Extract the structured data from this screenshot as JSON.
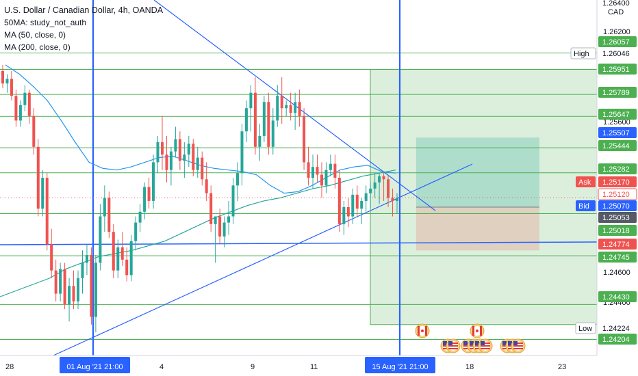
{
  "legend": {
    "title": "U.S. Dollar / Canadian Dollar, 4h, OANDA",
    "line2": "50MA: study_not_auth",
    "line3": "MA (50, close, 0)",
    "line4": "MA (200, close, 0)"
  },
  "price_axis": {
    "currency": "CAD",
    "top_price": "1.26400",
    "ticks": [
      "1.26200",
      "1.25600",
      "1.24600",
      "1.24400",
      "1.24200"
    ],
    "markers": [
      {
        "label": "",
        "value": "1.26057",
        "kind": "level"
      },
      {
        "label": "High",
        "value": "1.26046",
        "kind": "plain"
      },
      {
        "label": "",
        "value": "1.25951",
        "kind": "level"
      },
      {
        "label": "",
        "value": "1.25789",
        "kind": "level"
      },
      {
        "label": "",
        "value": "1.25647",
        "kind": "level"
      },
      {
        "label": "",
        "value": "1.25507",
        "kind": "blue"
      },
      {
        "label": "",
        "value": "1.25444",
        "kind": "level"
      },
      {
        "label": "",
        "value": "1.25282",
        "kind": "level"
      },
      {
        "label": "Ask",
        "value": "1.25170",
        "kind": "red"
      },
      {
        "label": "",
        "value": "1.25120",
        "kind": "red-outline"
      },
      {
        "label": "Bid",
        "value": "1.25070",
        "kind": "blue"
      },
      {
        "label": "",
        "value": "1.25053",
        "kind": "gray"
      },
      {
        "label": "",
        "value": "1.25018",
        "kind": "level"
      },
      {
        "label": "",
        "value": "1.24774",
        "kind": "red"
      },
      {
        "label": "",
        "value": "1.24745",
        "kind": "level"
      },
      {
        "label": "",
        "value": "1.24430",
        "kind": "level"
      },
      {
        "label": "Low",
        "value": "1.24224",
        "kind": "plain"
      },
      {
        "label": "",
        "value": "1.24204",
        "kind": "level"
      }
    ]
  },
  "time_axis": {
    "labels": [
      "28",
      "4",
      "9",
      "11",
      "18",
      "23"
    ],
    "highlighted": [
      "01 Aug '21  21:00",
      "15 Aug '21  21:00"
    ]
  },
  "colors": {
    "level_line": "#4caf50",
    "up_candle": "#26a69a",
    "down_candle": "#ef5350",
    "trend_line": "#2962ff",
    "ma50": "#2196f3",
    "ma200": "#26a69a"
  },
  "chart_data": {
    "type": "candlestick",
    "symbol": "USD/CAD",
    "timeframe": "4h",
    "ylim": [
      1.241,
      1.264
    ],
    "horizontal_levels": [
      1.26057,
      1.25951,
      1.25789,
      1.25647,
      1.25444,
      1.25282,
      1.25018,
      1.24745,
      1.2443,
      1.24204
    ],
    "last_price": 1.2512,
    "candles": [
      [
        1.2594,
        1.2598,
        1.2583,
        1.2586
      ],
      [
        1.2586,
        1.2592,
        1.258,
        1.2589
      ],
      [
        1.2589,
        1.2594,
        1.2575,
        1.2578
      ],
      [
        1.2578,
        1.2582,
        1.2558,
        1.2562
      ],
      [
        1.2562,
        1.2575,
        1.2558,
        1.2572
      ],
      [
        1.2572,
        1.2585,
        1.2568,
        1.258
      ],
      [
        1.258,
        1.2582,
        1.256,
        1.2565
      ],
      [
        1.2565,
        1.257,
        1.254,
        1.2545
      ],
      [
        1.2545,
        1.255,
        1.25,
        1.2505
      ],
      [
        1.2505,
        1.253,
        1.25,
        1.2525
      ],
      [
        1.2525,
        1.2528,
        1.2478,
        1.2482
      ],
      [
        1.2482,
        1.2492,
        1.246,
        1.2465
      ],
      [
        1.2465,
        1.2472,
        1.2445,
        1.245
      ],
      [
        1.245,
        1.247,
        1.2445,
        1.2466
      ],
      [
        1.2466,
        1.247,
        1.244,
        1.2443
      ],
      [
        1.2443,
        1.246,
        1.2432,
        1.2455
      ],
      [
        1.2455,
        1.2465,
        1.244,
        1.2445
      ],
      [
        1.2445,
        1.2465,
        1.244,
        1.246
      ],
      [
        1.246,
        1.2478,
        1.245,
        1.247
      ],
      [
        1.247,
        1.2482,
        1.2462,
        1.2475
      ],
      [
        1.2475,
        1.248,
        1.243,
        1.2435
      ],
      [
        1.2435,
        1.2475,
        1.2425,
        1.247
      ],
      [
        1.247,
        1.2508,
        1.2465,
        1.25
      ],
      [
        1.25,
        1.252,
        1.249,
        1.2512
      ],
      [
        1.2512,
        1.2516,
        1.2486,
        1.249
      ],
      [
        1.249,
        1.2495,
        1.246,
        1.2465
      ],
      [
        1.2465,
        1.2485,
        1.246,
        1.248
      ],
      [
        1.248,
        1.249,
        1.2468,
        1.2472
      ],
      [
        1.2472,
        1.248,
        1.2458,
        1.2462
      ],
      [
        1.2462,
        1.2488,
        1.2458,
        1.2484
      ],
      [
        1.2484,
        1.25,
        1.2478,
        1.2496
      ],
      [
        1.2496,
        1.2508,
        1.249,
        1.2503
      ],
      [
        1.2503,
        1.2522,
        1.2498,
        1.2519
      ],
      [
        1.2519,
        1.2525,
        1.2505,
        1.251
      ],
      [
        1.251,
        1.254,
        1.2505,
        1.2535
      ],
      [
        1.2535,
        1.2552,
        1.2528,
        1.2548
      ],
      [
        1.2548,
        1.2565,
        1.253,
        1.254
      ],
      [
        1.254,
        1.2552,
        1.2522,
        1.253
      ],
      [
        1.253,
        1.2545,
        1.252,
        1.2542
      ],
      [
        1.2542,
        1.2558,
        1.2538,
        1.255
      ],
      [
        1.255,
        1.2555,
        1.253,
        1.2536
      ],
      [
        1.2536,
        1.2548,
        1.2525,
        1.254
      ],
      [
        1.254,
        1.2552,
        1.2532,
        1.2547
      ],
      [
        1.2547,
        1.255,
        1.2526,
        1.253
      ],
      [
        1.253,
        1.2545,
        1.2525,
        1.2538
      ],
      [
        1.2538,
        1.2542,
        1.252,
        1.2524
      ],
      [
        1.2524,
        1.2535,
        1.251,
        1.2515
      ],
      [
        1.2515,
        1.252,
        1.249,
        1.2495
      ],
      [
        1.2495,
        1.25,
        1.247,
        1.25
      ],
      [
        1.25,
        1.2505,
        1.2482,
        1.2487
      ],
      [
        1.2487,
        1.25,
        1.248,
        1.2496
      ],
      [
        1.2496,
        1.251,
        1.2488,
        1.25
      ],
      [
        1.25,
        1.2525,
        1.2495,
        1.252
      ],
      [
        1.252,
        1.2535,
        1.251,
        1.2528
      ],
      [
        1.2528,
        1.256,
        1.252,
        1.2555
      ],
      [
        1.2555,
        1.2575,
        1.2548,
        1.257
      ],
      [
        1.257,
        1.2585,
        1.2555,
        1.258
      ],
      [
        1.258,
        1.259,
        1.254,
        1.2545
      ],
      [
        1.2545,
        1.256,
        1.2536,
        1.2552
      ],
      [
        1.2552,
        1.2578,
        1.2548,
        1.2574
      ],
      [
        1.2574,
        1.258,
        1.254,
        1.2545
      ],
      [
        1.2545,
        1.257,
        1.254,
        1.2562
      ],
      [
        1.2562,
        1.2585,
        1.2558,
        1.2578
      ],
      [
        1.2578,
        1.259,
        1.256,
        1.257
      ],
      [
        1.257,
        1.2575,
        1.2565,
        1.2572
      ],
      [
        1.2572,
        1.258,
        1.2562,
        1.2567
      ],
      [
        1.2567,
        1.258,
        1.2556,
        1.2574
      ],
      [
        1.2574,
        1.2582,
        1.2558,
        1.2565
      ],
      [
        1.2565,
        1.257,
        1.253,
        1.2535
      ],
      [
        1.2535,
        1.2545,
        1.252,
        1.2525
      ],
      [
        1.2525,
        1.254,
        1.2518,
        1.2532
      ],
      [
        1.2532,
        1.254,
        1.2522,
        1.2527
      ],
      [
        1.2527,
        1.2535,
        1.2512,
        1.252
      ],
      [
        1.252,
        1.2535,
        1.2515,
        1.253
      ],
      [
        1.253,
        1.254,
        1.2526,
        1.2534
      ],
      [
        1.2534,
        1.254,
        1.2518,
        1.2525
      ],
      [
        1.2525,
        1.253,
        1.249,
        1.2495
      ],
      [
        1.2495,
        1.251,
        1.2488,
        1.2506
      ],
      [
        1.2506,
        1.2512,
        1.2493,
        1.25
      ],
      [
        1.25,
        1.2518,
        1.2495,
        1.2514
      ],
      [
        1.2514,
        1.252,
        1.25,
        1.2505
      ],
      [
        1.2505,
        1.2512,
        1.2495,
        1.251
      ],
      [
        1.251,
        1.252,
        1.2503,
        1.2515
      ],
      [
        1.2515,
        1.2522,
        1.2505,
        1.2518
      ],
      [
        1.2518,
        1.2528,
        1.2512,
        1.2522
      ],
      [
        1.2522,
        1.2528,
        1.2508,
        1.2526
      ],
      [
        1.2526,
        1.2528,
        1.251,
        1.2524
      ],
      [
        1.2524,
        1.2526,
        1.2506,
        1.2512
      ],
      [
        1.2512,
        1.2518,
        1.25,
        1.251
      ],
      [
        1.251,
        1.2515,
        1.2502,
        1.2512
      ]
    ],
    "ma50": [
      1.2598,
      1.2592,
      1.2584,
      1.2575,
      1.2562,
      1.2548,
      1.2535,
      1.2531,
      1.253,
      1.2532,
      1.2535,
      1.2538,
      1.2539,
      1.2536,
      1.2533,
      1.2531,
      1.253,
      1.2529,
      1.2527,
      1.252,
      1.2515,
      1.2516,
      1.252,
      1.2525,
      1.253,
      1.2532,
      1.2533,
      1.2529,
      1.2528
    ],
    "ma200": [
      1.2448,
      1.2452,
      1.2456,
      1.246,
      1.2466,
      1.247,
      1.2474,
      1.2476,
      1.2478,
      1.2481,
      1.2484,
      1.2489,
      1.2494,
      1.2499,
      1.2503,
      1.2507,
      1.251,
      1.2512,
      1.2515,
      1.2518,
      1.252,
      1.2523,
      1.2526,
      1.2528,
      1.253
    ],
    "position_tool": {
      "entry": 1.2506,
      "target": 1.2551,
      "stop": 1.2478
    },
    "outer_box": {
      "top": 1.25951,
      "bottom": 1.243
    }
  }
}
